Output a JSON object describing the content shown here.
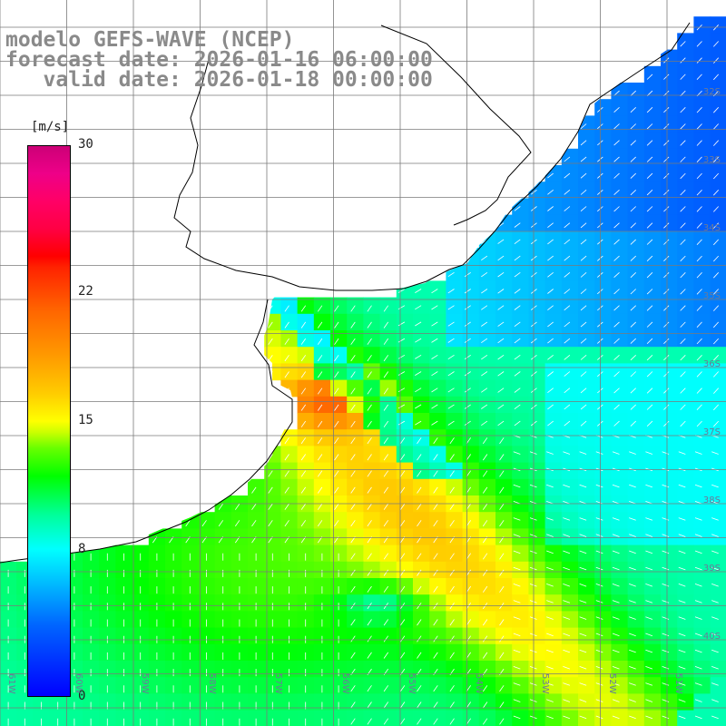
{
  "title": {
    "model": "modelo GEFS-WAVE (NCEP)",
    "forecast": "forecast date: 2026-01-16 06:00:00",
    "valid": "   valid date: 2026-01-18 00:00:00"
  },
  "legend": {
    "unit": "[m/s]",
    "min": 0,
    "max": 30,
    "ticks": [
      {
        "label": "30",
        "value": 30
      },
      {
        "label": "22",
        "value": 22
      },
      {
        "label": "15",
        "value": 15
      },
      {
        "label": "8",
        "value": 8
      },
      {
        "label": "0",
        "value": 0
      }
    ],
    "colors": {
      "low": "#0000ff",
      "mid_low": "#00ffff",
      "mid": "#00ff00",
      "mid_high": "#ffff00",
      "high": "#ff0000",
      "top": "#cc0077"
    }
  },
  "lat_labels": [
    "32S",
    "33S",
    "34S",
    "35S",
    "36S",
    "37S",
    "38S",
    "39S",
    "40S"
  ],
  "lon_labels": [
    "61W",
    "60W",
    "59W",
    "58W",
    "57W",
    "56W",
    "55W",
    "54W",
    "53W",
    "52W",
    "51W"
  ],
  "colors": {
    "coastline": "#000000",
    "gridline": "#7a7a7a",
    "land": "#ffffff",
    "vector": "#ffffff",
    "title_text": "#8a8a8a"
  }
}
